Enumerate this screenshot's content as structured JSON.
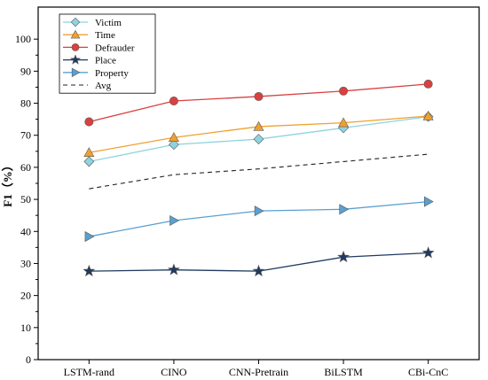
{
  "chart_data": {
    "type": "line",
    "title": "",
    "xlabel": "",
    "ylabel": "F1（%）",
    "ylim": [
      0,
      110
    ],
    "yticks": [
      0,
      10,
      20,
      30,
      40,
      50,
      60,
      70,
      80,
      90,
      100
    ],
    "categories": [
      "LSTM-rand",
      "CINO",
      "CNN-Pretrain",
      "BiLSTM",
      "CBi-CnC"
    ],
    "grid": false,
    "legend_position": "top-left",
    "series": [
      {
        "name": "Victim",
        "marker": "diamond",
        "color": "#8fd3e0",
        "dashed": false,
        "values": [
          61.8,
          67.1,
          68.8,
          72.3,
          75.8
        ]
      },
      {
        "name": "Time",
        "marker": "triangle-up",
        "color": "#f0a030",
        "dashed": false,
        "values": [
          64.6,
          69.3,
          72.7,
          73.9,
          76.0
        ]
      },
      {
        "name": "Defrauder",
        "marker": "circle",
        "color": "#d94040",
        "dashed": false,
        "values": [
          74.2,
          80.7,
          82.1,
          83.8,
          86.0
        ]
      },
      {
        "name": "Place",
        "marker": "star",
        "color": "#1f3a5f",
        "dashed": false,
        "values": [
          27.6,
          28.0,
          27.6,
          32.0,
          33.3
        ]
      },
      {
        "name": "Property",
        "marker": "triangle-right",
        "color": "#5aa0d0",
        "dashed": false,
        "values": [
          38.4,
          43.4,
          46.4,
          46.9,
          49.3
        ]
      },
      {
        "name": "Avg",
        "marker": "none",
        "color": "#222222",
        "dashed": true,
        "values": [
          53.3,
          57.7,
          59.5,
          61.8,
          64.1
        ]
      }
    ]
  }
}
